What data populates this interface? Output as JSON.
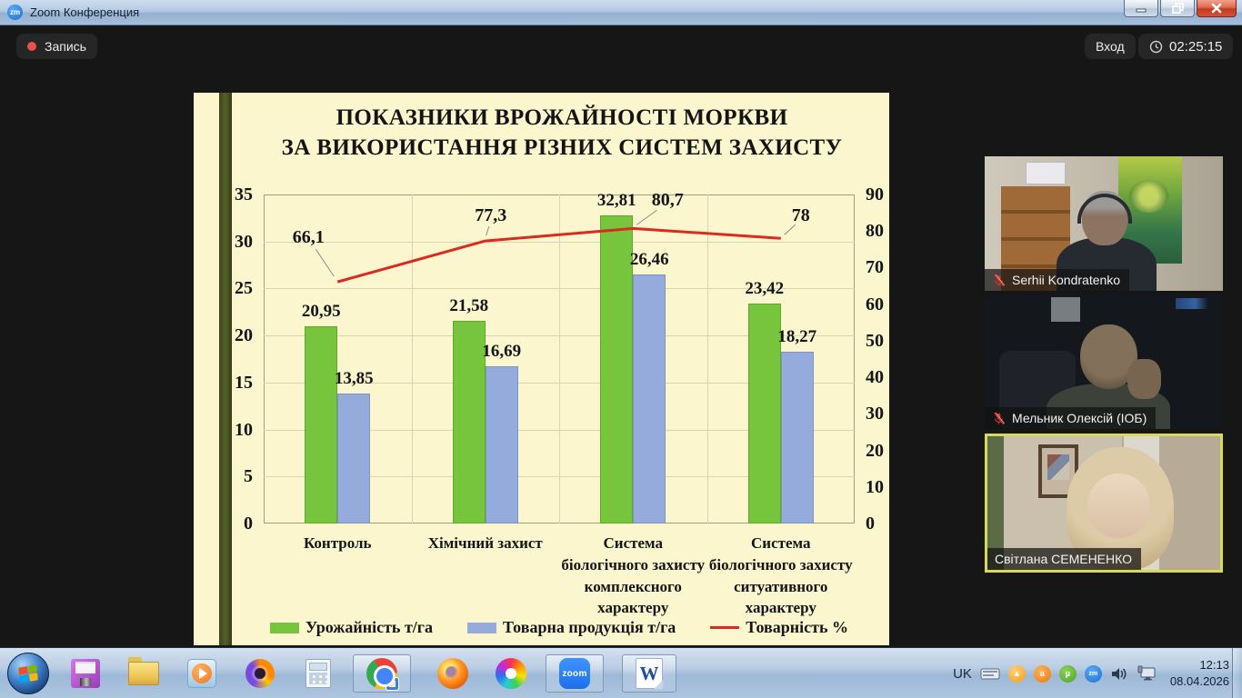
{
  "window": {
    "title": "Zoom Конференция",
    "controls": {
      "minimize": "minimize",
      "restore": "restore",
      "close": "close"
    }
  },
  "meeting_bar": {
    "recording_label": "Запись",
    "login_label": "Вход",
    "timer": "02:25:15"
  },
  "slide": {
    "title_line1": "ПОКАЗНИКИ ВРОЖАЙНОСТІ МОРКВИ",
    "title_line2": "ЗА ВИКОРИСТАННЯ РІЗНИХ СИСТЕМ ЗАХИСТУ"
  },
  "chart_data": {
    "type": "bar",
    "title": "ПОКАЗНИКИ ВРОЖАЙНОСТІ МОРКВИ ЗА ВИКОРИСТАННЯ РІЗНИХ СИСТЕМ ЗАХИСТУ",
    "categories": [
      [
        "Контроль"
      ],
      [
        "Хімічний захист"
      ],
      [
        "Система",
        "біологічного захисту",
        "комплексного",
        "характеру"
      ],
      [
        "Система",
        "біологічного захисту",
        "ситуативного",
        "характеру"
      ]
    ],
    "series": [
      {
        "name": "Урожайність т/га",
        "type": "bar",
        "axis": "left",
        "color": "#76c53c",
        "border": "#5fa82c",
        "values": [
          20.95,
          21.58,
          32.81,
          23.42
        ],
        "labels": [
          "20,95",
          "21,58",
          "32,81",
          "23,42"
        ]
      },
      {
        "name": "Товарна продукція т/га",
        "type": "bar",
        "axis": "left",
        "color": "#95abdc",
        "border": "#7e94c8",
        "values": [
          13.85,
          16.69,
          26.46,
          18.27
        ],
        "labels": [
          "13,85",
          "16,69",
          "26,46",
          "18,27"
        ]
      },
      {
        "name": "Товарність %",
        "type": "line",
        "axis": "right",
        "color": "#d92b1f",
        "values": [
          66.1,
          77.3,
          80.7,
          78
        ],
        "labels": [
          "66,1",
          "77,3",
          "80,7",
          "78"
        ]
      }
    ],
    "left_axis": {
      "min": 0,
      "max": 35,
      "step": 5,
      "ticks": [
        "0",
        "5",
        "10",
        "15",
        "20",
        "25",
        "30",
        "35"
      ]
    },
    "right_axis": {
      "min": 0,
      "max": 90,
      "step": 10,
      "ticks": [
        "0",
        "10",
        "20",
        "30",
        "40",
        "50",
        "60",
        "70",
        "80",
        "90"
      ]
    },
    "grid": true,
    "legend_position": "bottom"
  },
  "participants": [
    {
      "name": "Serhii Kondratenko",
      "muted": true,
      "active": false
    },
    {
      "name": "Мельник Олексій (ІОБ)",
      "muted": true,
      "active": false
    },
    {
      "name": "Світлана СЕМЕНЕНКО",
      "muted": false,
      "active": true
    }
  ],
  "taskbar": {
    "start": "windows-start-orb",
    "pinned_icons": [
      "floppy-disk",
      "file-explorer",
      "media-player",
      "avast-secure-browser",
      "calculator"
    ],
    "open_apps": [
      "chrome",
      "firefox",
      "color-swirl",
      "zoom",
      "word"
    ],
    "tray": {
      "language": "UK",
      "icons": [
        "keyboard",
        "update-arrow",
        "avast",
        "utorrent",
        "zoom",
        "speaker",
        "network"
      ],
      "time": "12:13",
      "date": "08.04.2026"
    }
  }
}
